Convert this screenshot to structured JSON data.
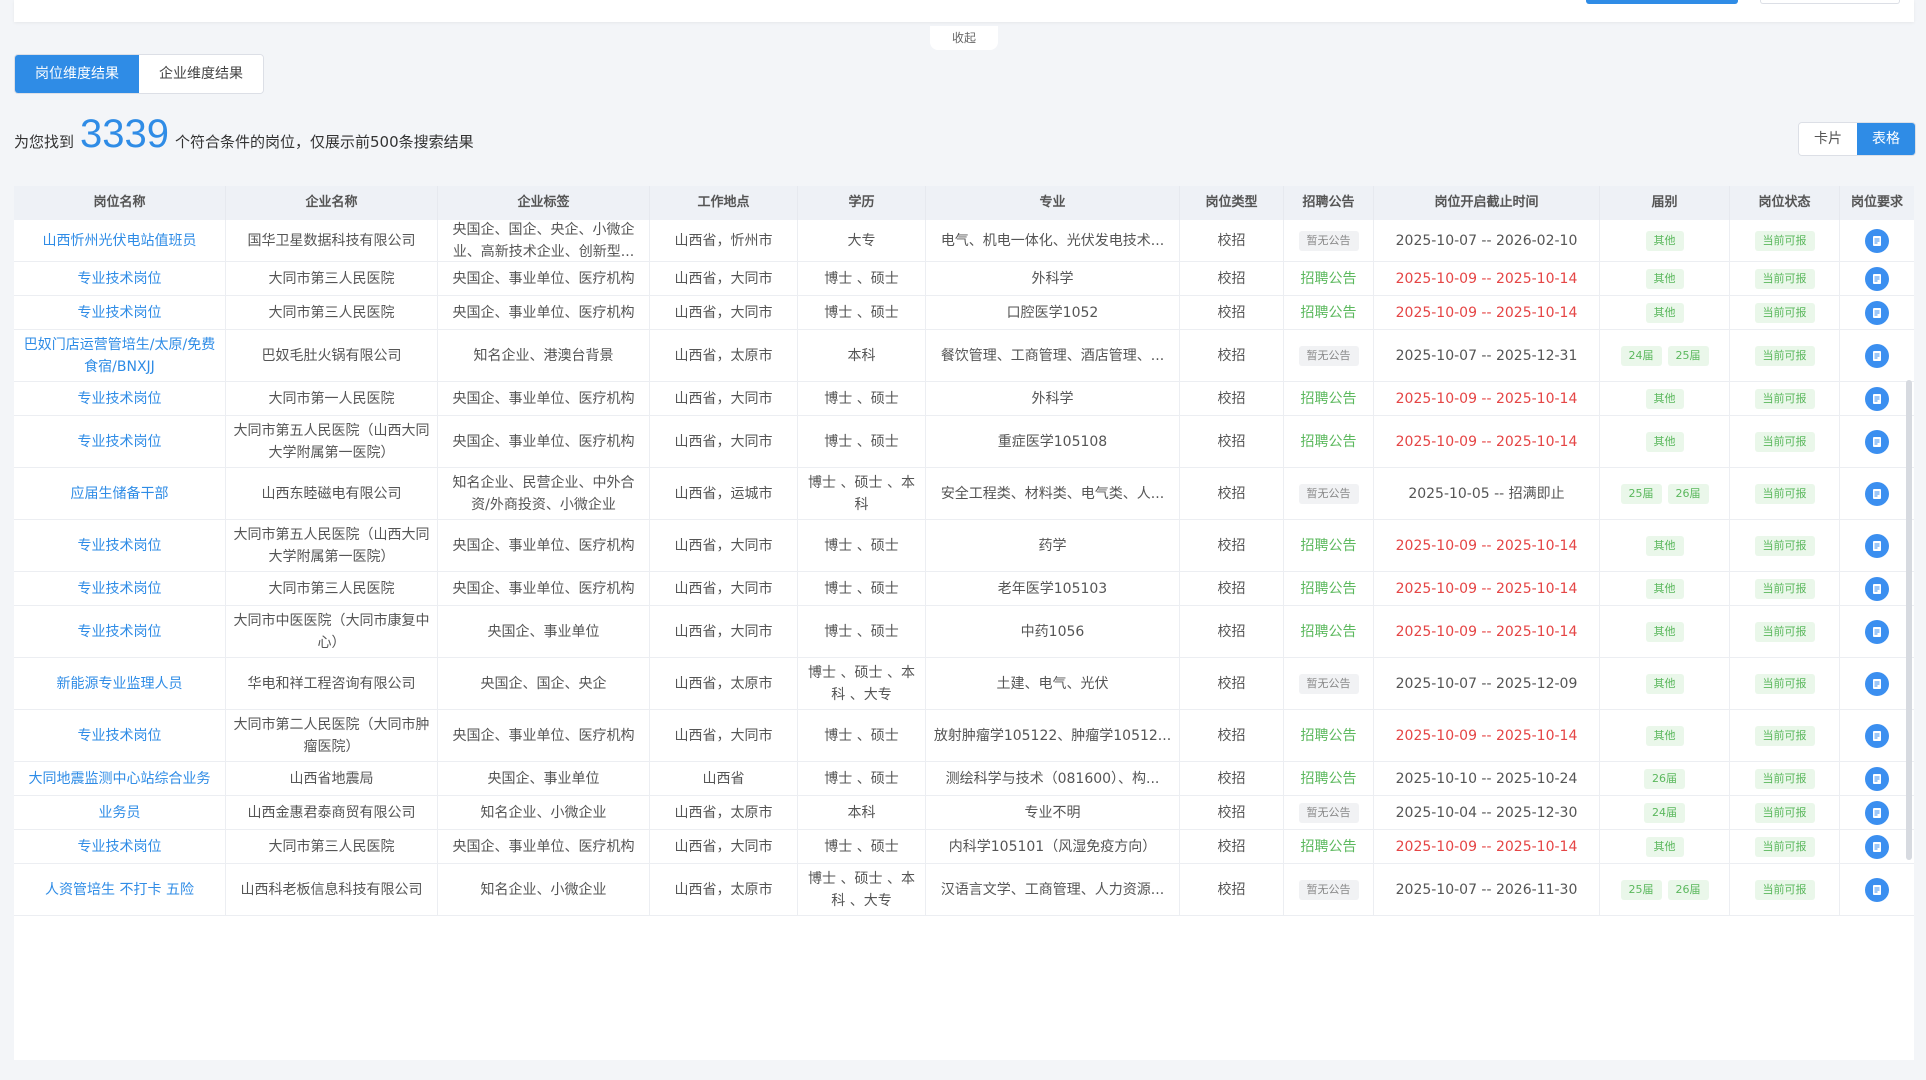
{
  "topbar": {
    "collapse_label": "收起"
  },
  "tabs": {
    "position": "岗位维度结果",
    "company": "企业维度结果"
  },
  "result": {
    "prefix": "为您找到",
    "count": "3339",
    "suffix": "个符合条件的岗位，仅展示前500条搜索结果"
  },
  "view_toggle": {
    "card": "卡片",
    "table": "表格"
  },
  "columns": [
    "岗位名称",
    "企业名称",
    "企业标签",
    "工作地点",
    "学历",
    "专业",
    "岗位类型",
    "招聘公告",
    "岗位开启截止时间",
    "届别",
    "岗位状态",
    "岗位要求"
  ],
  "rows": [
    {
      "job": "山西忻州光伏电站值班员",
      "company": "国华卫星数据科技有限公司",
      "tags": "央国企、国企、央企、小微企业、高新技术企业、创新型...",
      "location": "山西省，忻州市",
      "edu": "大专",
      "major": "电气、机电一体化、光伏发电技术...",
      "type": "校招",
      "notice": "暂无公告",
      "dates": "2025-10-07 -- 2026-02-10",
      "date_red": false,
      "grades": [
        "其他"
      ],
      "status": "当前可报"
    },
    {
      "job": "专业技术岗位",
      "company": "大同市第三人民医院",
      "tags": "央国企、事业单位、医疗机构",
      "location": "山西省，大同市",
      "edu": "博士 、硕士",
      "major": "外科学",
      "type": "校招",
      "notice": "招聘公告",
      "dates": "2025-10-09 -- 2025-10-14",
      "date_red": true,
      "grades": [
        "其他"
      ],
      "status": "当前可报"
    },
    {
      "job": "专业技术岗位",
      "company": "大同市第三人民医院",
      "tags": "央国企、事业单位、医疗机构",
      "location": "山西省，大同市",
      "edu": "博士 、硕士",
      "major": "口腔医学1052",
      "type": "校招",
      "notice": "招聘公告",
      "dates": "2025-10-09 -- 2025-10-14",
      "date_red": true,
      "grades": [
        "其他"
      ],
      "status": "当前可报"
    },
    {
      "job": "巴奴门店运营管培生/太原/免费食宿/BNXJJ",
      "company": "巴奴毛肚火锅有限公司",
      "tags": "知名企业、港澳台背景",
      "location": "山西省，太原市",
      "edu": "本科",
      "major": "餐饮管理、工商管理、酒店管理、...",
      "type": "校招",
      "notice": "暂无公告",
      "dates": "2025-10-07 -- 2025-12-31",
      "date_red": false,
      "grades": [
        "24届",
        "25届"
      ],
      "status": "当前可报"
    },
    {
      "job": "专业技术岗位",
      "company": "大同市第一人民医院",
      "tags": "央国企、事业单位、医疗机构",
      "location": "山西省，大同市",
      "edu": "博士 、硕士",
      "major": "外科学",
      "type": "校招",
      "notice": "招聘公告",
      "dates": "2025-10-09 -- 2025-10-14",
      "date_red": true,
      "grades": [
        "其他"
      ],
      "status": "当前可报"
    },
    {
      "job": "专业技术岗位",
      "company": "大同市第五人民医院（山西大同大学附属第一医院）",
      "tags": "央国企、事业单位、医疗机构",
      "location": "山西省，大同市",
      "edu": "博士 、硕士",
      "major": "重症医学105108",
      "type": "校招",
      "notice": "招聘公告",
      "dates": "2025-10-09 -- 2025-10-14",
      "date_red": true,
      "grades": [
        "其他"
      ],
      "status": "当前可报"
    },
    {
      "job": "应届生储备干部",
      "company": "山西东睦磁电有限公司",
      "tags": "知名企业、民营企业、中外合资/外商投资、小微企业",
      "location": "山西省，运城市",
      "edu": "博士 、硕士 、本科",
      "major": "安全工程类、材料类、电气类、人...",
      "type": "校招",
      "notice": "暂无公告",
      "dates": "2025-10-05 -- 招满即止",
      "date_red": false,
      "grades": [
        "25届",
        "26届"
      ],
      "status": "当前可报"
    },
    {
      "job": "专业技术岗位",
      "company": "大同市第五人民医院（山西大同大学附属第一医院）",
      "tags": "央国企、事业单位、医疗机构",
      "location": "山西省，大同市",
      "edu": "博士 、硕士",
      "major": "药学",
      "type": "校招",
      "notice": "招聘公告",
      "dates": "2025-10-09 -- 2025-10-14",
      "date_red": true,
      "grades": [
        "其他"
      ],
      "status": "当前可报"
    },
    {
      "job": "专业技术岗位",
      "company": "大同市第三人民医院",
      "tags": "央国企、事业单位、医疗机构",
      "location": "山西省，大同市",
      "edu": "博士 、硕士",
      "major": "老年医学105103",
      "type": "校招",
      "notice": "招聘公告",
      "dates": "2025-10-09 -- 2025-10-14",
      "date_red": true,
      "grades": [
        "其他"
      ],
      "status": "当前可报"
    },
    {
      "job": "专业技术岗位",
      "company": "大同市中医医院（大同市康复中心）",
      "tags": "央国企、事业单位",
      "location": "山西省，大同市",
      "edu": "博士 、硕士",
      "major": "中药1056",
      "type": "校招",
      "notice": "招聘公告",
      "dates": "2025-10-09 -- 2025-10-14",
      "date_red": true,
      "grades": [
        "其他"
      ],
      "status": "当前可报"
    },
    {
      "job": "新能源专业监理人员",
      "company": "华电和祥工程咨询有限公司",
      "tags": "央国企、国企、央企",
      "location": "山西省，太原市",
      "edu": "博士 、硕士 、本科 、大专",
      "major": "土建、电气、光伏",
      "type": "校招",
      "notice": "暂无公告",
      "dates": "2025-10-07 -- 2025-12-09",
      "date_red": false,
      "grades": [
        "其他"
      ],
      "status": "当前可报"
    },
    {
      "job": "专业技术岗位",
      "company": "大同市第二人民医院（大同市肿瘤医院）",
      "tags": "央国企、事业单位、医疗机构",
      "location": "山西省，大同市",
      "edu": "博士 、硕士",
      "major": "放射肿瘤学105122、肿瘤学10512...",
      "type": "校招",
      "notice": "招聘公告",
      "dates": "2025-10-09 -- 2025-10-14",
      "date_red": true,
      "grades": [
        "其他"
      ],
      "status": "当前可报"
    },
    {
      "job": "大同地震监测中心站综合业务",
      "company": "山西省地震局",
      "tags": "央国企、事业单位",
      "location": "山西省",
      "edu": "博士 、硕士",
      "major": "测绘科学与技术（081600）、构...",
      "type": "校招",
      "notice": "招聘公告",
      "dates": "2025-10-10 -- 2025-10-24",
      "date_red": false,
      "grades": [
        "26届"
      ],
      "status": "当前可报"
    },
    {
      "job": "业务员",
      "company": "山西金惠君泰商贸有限公司",
      "tags": "知名企业、小微企业",
      "location": "山西省，太原市",
      "edu": "本科",
      "major": "专业不明",
      "type": "校招",
      "notice": "暂无公告",
      "dates": "2025-10-04 -- 2025-12-30",
      "date_red": false,
      "grades": [
        "24届"
      ],
      "status": "当前可报"
    },
    {
      "job": "专业技术岗位",
      "company": "大同市第三人民医院",
      "tags": "央国企、事业单位、医疗机构",
      "location": "山西省，大同市",
      "edu": "博士 、硕士",
      "major": "内科学105101（风湿免疫方向）",
      "type": "校招",
      "notice": "招聘公告",
      "dates": "2025-10-09 -- 2025-10-14",
      "date_red": true,
      "grades": [
        "其他"
      ],
      "status": "当前可报"
    },
    {
      "job": "人资管培生 不打卡 五险",
      "company": "山西科老板信息科技有限公司",
      "tags": "知名企业、小微企业",
      "location": "山西省，太原市",
      "edu": "博士 、硕士 、本科 、大专",
      "major": "汉语言文学、工商管理、人力资源...",
      "type": "校招",
      "notice": "暂无公告",
      "dates": "2025-10-07 -- 2026-11-30",
      "date_red": false,
      "grades": [
        "25届",
        "26届"
      ],
      "status": "当前可报"
    }
  ],
  "colors": {
    "accent": "#2f8ce6",
    "red_date": "#e54545",
    "green": "#5bb85d"
  }
}
